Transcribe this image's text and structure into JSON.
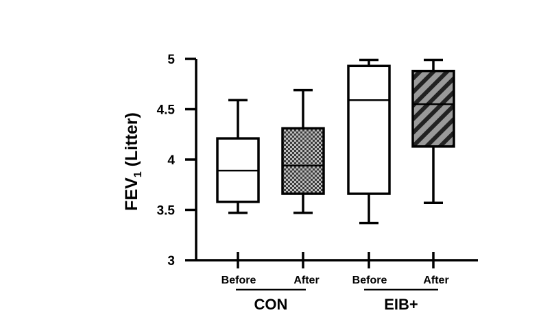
{
  "chart_data": {
    "type": "boxplot",
    "ylabel_main": "FEV",
    "ylabel_sub": "1",
    "ylabel_suffix": " (Litter)",
    "ylim": [
      3,
      5
    ],
    "yticks": [
      {
        "value": 3,
        "label": "3"
      },
      {
        "value": 3.5,
        "label": "3.5"
      },
      {
        "value": 4,
        "label": "4"
      },
      {
        "value": 4.5,
        "label": "4.5"
      },
      {
        "value": 5,
        "label": "5"
      }
    ],
    "boxes": [
      {
        "label": "Before",
        "group": "CON",
        "min": 3.47,
        "q1": 3.58,
        "median": 3.89,
        "q3": 4.21,
        "max": 4.59,
        "fill": "white"
      },
      {
        "label": "After",
        "group": "CON",
        "min": 3.47,
        "q1": 3.66,
        "median": 3.94,
        "q3": 4.31,
        "max": 4.69,
        "fill": "checker"
      },
      {
        "label": "Before",
        "group": "EIB+",
        "min": 3.37,
        "q1": 3.66,
        "median": 4.59,
        "q3": 4.93,
        "max": 4.99,
        "fill": "white"
      },
      {
        "label": "After",
        "group": "EIB+",
        "min": 3.57,
        "q1": 4.13,
        "median": 4.55,
        "q3": 4.88,
        "max": 4.99,
        "fill": "hatch"
      }
    ],
    "groups": [
      {
        "label": "CON"
      },
      {
        "label": "EIB+"
      }
    ],
    "colors": {
      "line": "#000000",
      "box_fill": "#ffffff",
      "checker_dark": "#3a3a3a",
      "checker_light": "#bdbdbd",
      "hatch_bg": "#9a9a9a",
      "hatch_line": "#222222"
    }
  }
}
